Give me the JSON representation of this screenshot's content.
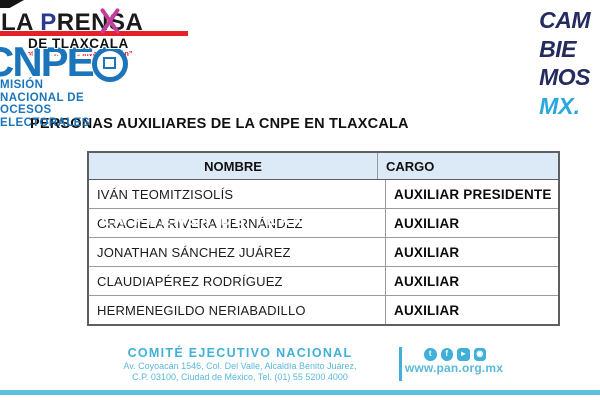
{
  "masthead": {
    "word1": "LA ",
    "word2_initial": "P",
    "word2_rest": "RENSA",
    "region": "DE TLAXCALA",
    "tagline": "“La noticia a fondo e investigación”"
  },
  "cnpe": {
    "acronym": "CNPE",
    "org_line1": "MISIÓN NACIONAL DE",
    "org_line2": "OCESOS ELECTORALES"
  },
  "cambiemos": {
    "line1": "CAM",
    "line2": "BIE",
    "line3": "MOS",
    "mx": "MX."
  },
  "title": "PERSONAS AUXILIARES DE LA CNPE EN TLAXCALA",
  "table": {
    "columns": {
      "nombre": "NOMBRE",
      "cargo": "CARGO"
    },
    "rows": [
      {
        "nombre": "IVÁN TEOMITZISOLÍS",
        "cargo": "AUXILIAR PRESIDENTE",
        "watermarked": false
      },
      {
        "nombre": "GRACIELA RIVERA HERNÁNDEZ",
        "cargo": "AUXILIAR",
        "watermarked": true
      },
      {
        "nombre": "JONATHAN SÁNCHEZ JUÁREZ",
        "cargo": "AUXILIAR",
        "watermarked": false
      },
      {
        "nombre": "CLAUDIAPÉREZ RODRÍGUEZ",
        "cargo": "AUXILIAR",
        "watermarked": false
      },
      {
        "nombre": "HERMENEGILDO NERIABADILLO",
        "cargo": "AUXILIAR",
        "watermarked": false
      }
    ],
    "watermark_text": "LA PRENSA DE TLAXCALA"
  },
  "footer": {
    "org": "COMITÉ EJECUTIVO NACIONAL",
    "address_line1": "Av. Coyoacán 1546, Col. Del Valle, Alcaldía Benito Juárez,",
    "address_line2": "C.P. 03100, Ciudad de México, Tel. (01) 55 5200 4000",
    "website": "www.pan.org.mx",
    "social_icons": {
      "twitter": "t",
      "facebook": "f",
      "youtube": "▸",
      "instagram": "◉"
    }
  },
  "colors": {
    "cnpe_blue": "#1c75bb",
    "cambiemos_navy": "#232b5f",
    "cambiemos_sky": "#29a8dd",
    "footer_blue": "#41b0d8",
    "prensa_red": "#e42127",
    "magenta_swoosh": "#c43e9e",
    "table_header_bg": "#dce9f6"
  }
}
